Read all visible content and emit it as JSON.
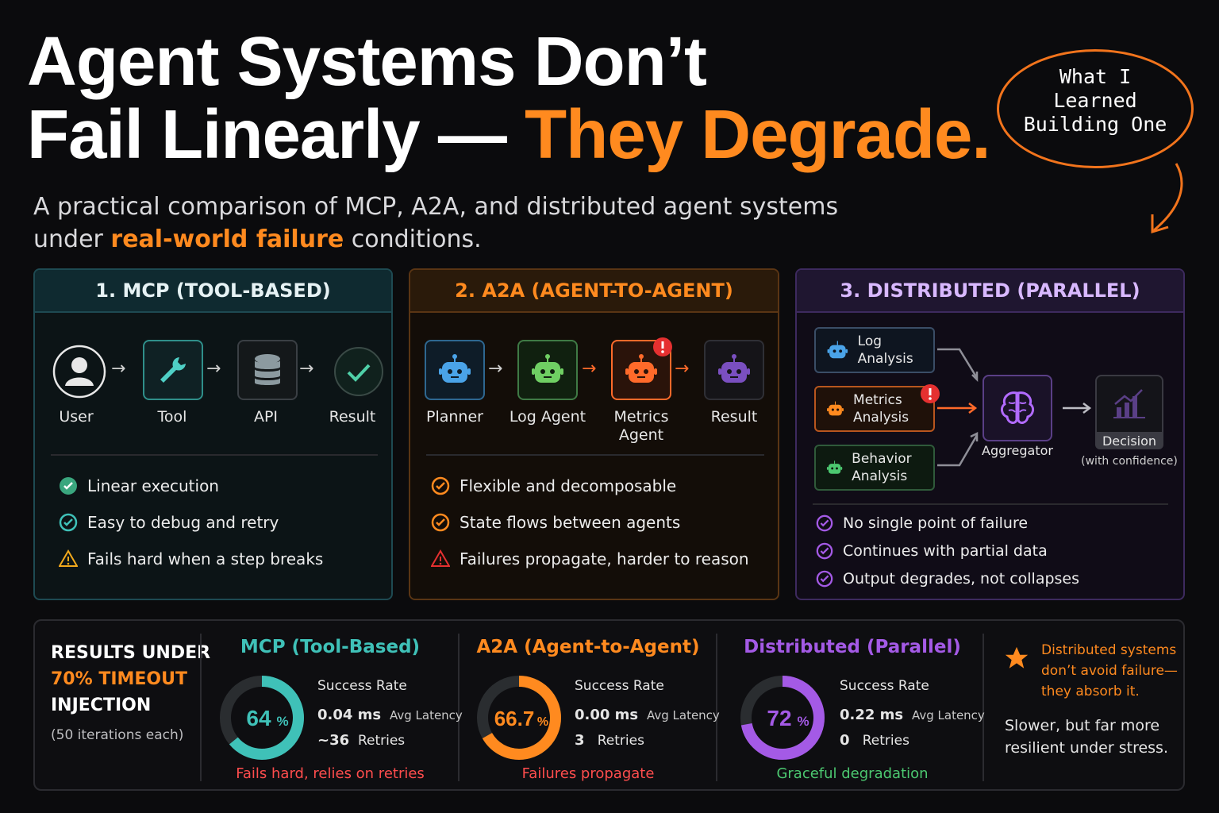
{
  "header": {
    "title_line1": "Agent Systems Don’t",
    "title_line2_white": "Fail Linearly — ",
    "title_line2_accent": "They Degrade.",
    "subtitle_line1": "A practical comparison of MCP, A2A, and distributed agent systems",
    "subtitle_pre": "under ",
    "subtitle_accent": "real-world failure",
    "subtitle_post": " conditions.",
    "bubble_lines": [
      "What I",
      "Learned",
      "Building One"
    ]
  },
  "panels": {
    "mcp": {
      "title": "1. MCP (TOOL-BASED)",
      "nodes": [
        "User",
        "Tool",
        "API",
        "Result"
      ],
      "features": [
        {
          "icon": "check-circle-icon",
          "text": "Linear execution"
        },
        {
          "icon": "check-circle-icon",
          "text": "Easy to debug and retry"
        },
        {
          "icon": "warning-icon",
          "text": "Fails hard when a step breaks"
        }
      ]
    },
    "a2a": {
      "title": "2. A2A (AGENT-TO-AGENT)",
      "nodes": [
        "Planner",
        "Log Agent",
        "Metrics Agent",
        "Result"
      ],
      "features": [
        {
          "icon": "check-circle-icon",
          "text": "Flexible and decomposable"
        },
        {
          "icon": "check-circle-icon",
          "text": "State flows between agents"
        },
        {
          "icon": "warning-icon",
          "text": "Failures propagate, harder to reason"
        }
      ]
    },
    "distributed": {
      "title": "3. DISTRIBUTED (PARALLEL)",
      "agents": [
        "Log Analysis",
        "Metrics Analysis",
        "Behavior Analysis"
      ],
      "aggregator": "Aggregator",
      "decision": "Decision",
      "decision_sub": "(with confidence)",
      "features": [
        {
          "icon": "check-circle-icon",
          "text": "No single point of failure"
        },
        {
          "icon": "check-circle-icon",
          "text": "Continues with partial data"
        },
        {
          "icon": "check-circle-icon",
          "text": "Output degrades, not collapses"
        }
      ]
    }
  },
  "results": {
    "title_line1": "RESULTS UNDER",
    "title_line2": "70% TIMEOUT",
    "title_line3": "INJECTION",
    "subtitle": "(50 iterations each)",
    "columns": [
      {
        "title": "MCP (Tool-Based)",
        "rate": 64,
        "rate_num": "64",
        "rate_unit": "%",
        "success_label": "Success Rate",
        "latency": "0.04 ms",
        "latency_label": "Avg Latency",
        "retries": "~36",
        "retries_label": "Retries",
        "footer": "Fails hard, relies on retries",
        "color": "#3fc1b8",
        "footer_color": "#ff4d4d"
      },
      {
        "title": "A2A (Agent-to-Agent)",
        "rate": 66.7,
        "rate_num": "66.7",
        "rate_unit": "%",
        "success_label": "Success Rate",
        "latency": "0.00 ms",
        "latency_label": "Avg Latency",
        "retries": "3",
        "retries_label": "Retries",
        "footer": "Failures propagate",
        "color": "#ff8a1f",
        "footer_color": "#ff4d4d"
      },
      {
        "title": "Distributed (Parallel)",
        "rate": 72,
        "rate_num": "72",
        "rate_unit": "%",
        "success_label": "Success Rate",
        "latency": "0.22 ms",
        "latency_label": "Avg Latency",
        "retries": "0",
        "retries_label": "Retries",
        "footer": "Graceful degradation",
        "color": "#a45ae6",
        "footer_color": "#4cc870"
      }
    ],
    "note_lines": [
      "Distributed systems",
      "don’t avoid failure—",
      "they absorb it."
    ],
    "note2_lines": [
      "Slower, but far more",
      "resilient under stress."
    ]
  }
}
